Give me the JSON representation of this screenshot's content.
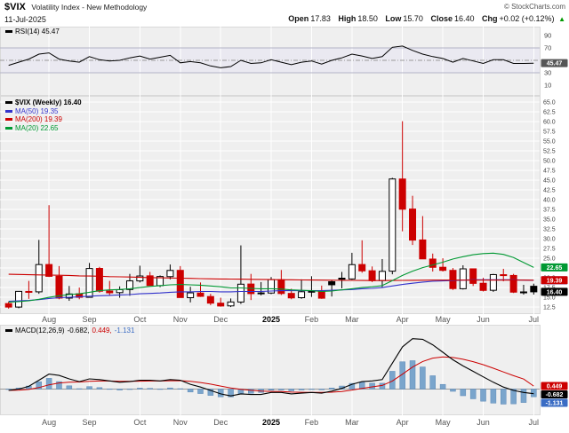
{
  "header": {
    "symbol": "$VIX",
    "name": "Volatility Index - New Methodology",
    "date": "11-Jul-2025",
    "copyright": "© StockCharts.com",
    "quote": {
      "open_label": "Open",
      "open": "17.83",
      "high_label": "High",
      "high": "18.50",
      "low_label": "Low",
      "low": "15.70",
      "close_label": "Close",
      "close": "16.40",
      "chg_label": "Chg",
      "chg": "+0.02 (+0.12%)",
      "arrow": "▲"
    }
  },
  "colors": {
    "bg_panel": "#efefef",
    "grid": "#ffffff",
    "up": "#000000",
    "down": "#cc0000",
    "ma50": "#3333cc",
    "ma200": "#cc0000",
    "ma20": "#009933",
    "rsi": "#000000",
    "rsi_tag": "#555555",
    "macd_line": "#000000",
    "macd_signal": "#cc0000",
    "macd_hist": "#7aa5cc",
    "macd_hist_edge": "#5d8ab8",
    "macd_hist_text": "#3a6cc4",
    "arrow_up": "#009900"
  },
  "x_labels": [
    "Aug",
    "Sep",
    "Oct",
    "Nov",
    "Dec",
    "2025",
    "Feb",
    "Mar",
    "Apr",
    "May",
    "Jun",
    "Jul"
  ],
  "month_indices": [
    4,
    8,
    13,
    17,
    21,
    26,
    30,
    34,
    39,
    43,
    47,
    52
  ],
  "chart_data": [
    {
      "type": "line",
      "panel": "rsi",
      "legend": "RSI(14) 45.47",
      "current": 45.47,
      "tag": "45.47",
      "ylim": [
        0,
        100
      ],
      "ytick_values": [
        90,
        70,
        30,
        10
      ],
      "ytick_labels": [
        "90",
        "70",
        "30",
        "10"
      ],
      "values": [
        42,
        47,
        52,
        60,
        62,
        52,
        49,
        47,
        56,
        51,
        49,
        50,
        54,
        57,
        52,
        55,
        58,
        46,
        48,
        46,
        41,
        38,
        40,
        50,
        45,
        46,
        51,
        47,
        43,
        47,
        49,
        44,
        50,
        54,
        60,
        57,
        53,
        56,
        71,
        73,
        66,
        60,
        56,
        53,
        47,
        53,
        49,
        45,
        51,
        51,
        45,
        45,
        45.47
      ]
    },
    {
      "type": "candlestick",
      "panel": "price",
      "legend": "$VIX (Weekly) 16.40",
      "current": 16.4,
      "ylim": [
        10.7,
        66.6
      ],
      "ytick_values": [
        65,
        62.5,
        60,
        57.5,
        55,
        52.5,
        50,
        47.5,
        45,
        42.5,
        40,
        37.5,
        35,
        32.5,
        30,
        27.5,
        25,
        22.5,
        20,
        17.5,
        15,
        12.5
      ],
      "ytick_labels": [
        "65.0",
        "62.5",
        "60.0",
        "57.5",
        "55.0",
        "52.5",
        "50.0",
        "47.5",
        "45.0",
        "42.5",
        "40.0",
        "37.5",
        "35.0",
        "32.5",
        "30.0",
        "27.5",
        "25.0",
        "22.5",
        "20.0",
        "17.5",
        "15.0",
        "12.5"
      ],
      "candles": [
        [
          13.4,
          13.9,
          12.1,
          12.5
        ],
        [
          12.5,
          16.6,
          12.2,
          16.52
        ],
        [
          16.5,
          19.2,
          14.6,
          16.39
        ],
        [
          16.4,
          29.7,
          15.9,
          23.39
        ],
        [
          23.4,
          38.6,
          20.2,
          20.37
        ],
        [
          20.4,
          23.0,
          14.5,
          14.8
        ],
        [
          14.8,
          17.9,
          14.1,
          15.86
        ],
        [
          15.9,
          17.5,
          14.5,
          15.0
        ],
        [
          15.0,
          23.8,
          15.0,
          22.38
        ],
        [
          22.4,
          22.8,
          16.2,
          16.56
        ],
        [
          16.6,
          19.2,
          15.4,
          16.15
        ],
        [
          16.2,
          17.8,
          14.9,
          16.96
        ],
        [
          17.0,
          21.0,
          15.4,
          19.21
        ],
        [
          19.2,
          23.1,
          18.8,
          20.46
        ],
        [
          20.5,
          21.5,
          18.0,
          18.03
        ],
        [
          18.0,
          20.6,
          17.6,
          20.33
        ],
        [
          20.3,
          23.4,
          19.6,
          21.88
        ],
        [
          21.9,
          23.0,
          14.9,
          14.94
        ],
        [
          14.9,
          17.7,
          13.7,
          16.14
        ],
        [
          16.1,
          18.8,
          15.1,
          15.24
        ],
        [
          15.2,
          15.9,
          13.0,
          13.51
        ],
        [
          13.5,
          14.9,
          12.6,
          12.77
        ],
        [
          12.8,
          14.7,
          12.5,
          13.81
        ],
        [
          13.8,
          28.3,
          13.3,
          18.36
        ],
        [
          18.4,
          21.0,
          14.3,
          15.95
        ],
        [
          16.0,
          18.9,
          15.5,
          16.13
        ],
        [
          16.1,
          20.2,
          15.8,
          19.54
        ],
        [
          19.5,
          22.0,
          15.6,
          15.97
        ],
        [
          16.0,
          17.2,
          14.5,
          14.85
        ],
        [
          14.9,
          19.6,
          14.6,
          16.43
        ],
        [
          16.4,
          20.4,
          15.1,
          16.54
        ],
        [
          16.5,
          18.0,
          14.6,
          14.77
        ],
        [
          19.0,
          19.4,
          15.2,
          18.21
        ],
        [
          19.9,
          21.5,
          17.3,
          19.63
        ],
        [
          19.7,
          26.4,
          19.5,
          23.37
        ],
        [
          23.4,
          29.6,
          21.3,
          21.77
        ],
        [
          21.8,
          22.9,
          18.9,
          19.28
        ],
        [
          19.3,
          24.8,
          17.5,
          21.65
        ],
        [
          21.7,
          45.6,
          20.9,
          45.31
        ],
        [
          45.3,
          60.1,
          31.9,
          37.56
        ],
        [
          37.6,
          41.0,
          28.4,
          29.65
        ],
        [
          29.7,
          35.8,
          24.8,
          24.84
        ],
        [
          24.8,
          26.2,
          21.6,
          22.68
        ],
        [
          22.7,
          25.0,
          21.6,
          21.9
        ],
        [
          21.9,
          22.5,
          16.9,
          17.24
        ],
        [
          17.2,
          23.2,
          17.0,
          22.29
        ],
        [
          22.3,
          22.4,
          17.9,
          18.57
        ],
        [
          18.6,
          20.0,
          16.5,
          16.77
        ],
        [
          16.8,
          21.0,
          16.4,
          20.82
        ],
        [
          20.8,
          22.3,
          19.1,
          20.62
        ],
        [
          20.6,
          21.0,
          16.1,
          16.32
        ],
        [
          16.3,
          18.2,
          15.7,
          16.38
        ],
        [
          17.83,
          18.5,
          15.7,
          16.4
        ]
      ],
      "overlays": [
        {
          "name": "MA(50)",
          "legend": "MA(50) 19.35",
          "value": 19.35,
          "color_key": "ma50",
          "values": [
            14.0,
            14.1,
            14.2,
            14.4,
            14.7,
            14.9,
            15.0,
            15.1,
            15.3,
            15.4,
            15.5,
            15.6,
            15.7,
            15.9,
            16.0,
            16.1,
            16.3,
            16.4,
            16.4,
            16.5,
            16.5,
            16.4,
            16.4,
            16.5,
            16.5,
            16.5,
            16.6,
            16.7,
            16.7,
            16.7,
            16.7,
            16.7,
            16.8,
            16.9,
            17.0,
            17.2,
            17.3,
            17.5,
            17.9,
            18.3,
            18.6,
            18.9,
            19.1,
            19.2,
            19.3,
            19.4,
            19.5,
            19.5,
            19.5,
            19.5,
            19.5,
            19.4,
            19.35
          ]
        },
        {
          "name": "MA(200)",
          "legend": "MA(200) 19.39",
          "value": 19.39,
          "color_key": "ma200",
          "values": [
            20.9,
            20.85,
            20.8,
            20.75,
            20.7,
            20.65,
            20.6,
            20.5,
            20.45,
            20.4,
            20.3,
            20.25,
            20.2,
            20.1,
            20.05,
            20.0,
            19.95,
            19.9,
            19.85,
            19.8,
            19.75,
            19.7,
            19.68,
            19.65,
            19.6,
            19.58,
            19.55,
            19.5,
            19.5,
            19.45,
            19.42,
            19.4,
            19.38,
            19.36,
            19.34,
            19.32,
            19.3,
            19.3,
            19.32,
            19.34,
            19.36,
            19.38,
            19.4,
            19.4,
            19.4,
            19.4,
            19.4,
            19.4,
            19.4,
            19.4,
            19.4,
            19.4,
            19.39
          ]
        },
        {
          "name": "MA(20)",
          "legend": "MA(20) 22.65",
          "value": 22.65,
          "color_key": "ma20",
          "values": [
            13.8,
            13.9,
            14.1,
            14.5,
            15.0,
            15.4,
            15.7,
            15.9,
            16.3,
            16.7,
            16.9,
            17.0,
            17.2,
            17.5,
            17.8,
            18.0,
            18.2,
            18.3,
            18.2,
            18.1,
            17.9,
            17.7,
            17.4,
            17.4,
            17.3,
            17.2,
            17.2,
            17.1,
            16.9,
            16.8,
            16.7,
            16.5,
            16.6,
            16.9,
            17.2,
            17.5,
            17.7,
            18.0,
            19.3,
            20.6,
            21.7,
            22.6,
            23.3,
            24.0,
            24.8,
            25.4,
            25.9,
            26.2,
            26.3,
            26.0,
            25.2,
            23.9,
            22.65
          ]
        }
      ],
      "tags": [
        {
          "text": "22.65",
          "v": 22.65,
          "color_key": "ma20"
        },
        {
          "text": "19.35",
          "v": 19.35,
          "color_key": "ma50"
        },
        {
          "text": "19.39",
          "v": 19.39,
          "color_key": "ma200"
        },
        {
          "text": "16.40",
          "v": 16.4,
          "color_key": "up"
        }
      ]
    },
    {
      "type": "macd",
      "panel": "macd",
      "legend_label": "MACD(12,26,9)",
      "legend_macd": "-0.682,",
      "legend_signal": "0.449,",
      "legend_hist": "-1.131",
      "ylim": [
        -2.8,
        8.4
      ],
      "macd": [
        -0.2,
        0.0,
        0.4,
        1.3,
        2.2,
        2.0,
        1.5,
        1.1,
        1.5,
        1.4,
        1.2,
        1.0,
        1.1,
        1.3,
        1.3,
        1.2,
        1.4,
        1.3,
        0.7,
        0.3,
        -0.2,
        -0.7,
        -1.0,
        -0.7,
        -0.8,
        -0.8,
        -0.5,
        -0.5,
        -0.7,
        -0.6,
        -0.5,
        -0.6,
        -0.3,
        0.1,
        0.7,
        1.1,
        1.2,
        1.4,
        3.8,
        6.2,
        7.4,
        7.3,
        6.5,
        5.4,
        4.3,
        3.4,
        2.6,
        1.8,
        1.0,
        0.3,
        -0.2,
        -0.5,
        -0.682
      ],
      "signal": [
        -0.2,
        -0.16,
        -0.05,
        0.22,
        0.62,
        0.9,
        1.02,
        1.04,
        1.13,
        1.18,
        1.18,
        1.14,
        1.13,
        1.16,
        1.19,
        1.19,
        1.23,
        1.24,
        1.13,
        0.96,
        0.73,
        0.44,
        0.15,
        -0.02,
        -0.18,
        -0.3,
        -0.34,
        -0.37,
        -0.44,
        -0.47,
        -0.48,
        -0.5,
        -0.46,
        -0.35,
        -0.14,
        0.11,
        0.33,
        0.54,
        1.19,
        2.19,
        3.23,
        4.05,
        4.54,
        4.71,
        4.63,
        4.38,
        4.03,
        3.58,
        3.06,
        2.51,
        1.97,
        1.47,
        0.449
      ],
      "tags": [
        {
          "text": "0.449",
          "v": 0.449,
          "color_key": "macd_signal"
        },
        {
          "text": "-0.682",
          "v": -0.682,
          "color_key": "macd_line"
        },
        {
          "text": "-1.131",
          "v": -1.131,
          "color_key": "macd_hist_text"
        }
      ]
    }
  ]
}
